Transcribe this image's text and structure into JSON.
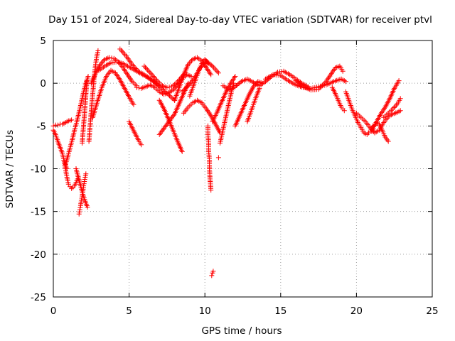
{
  "chart_data": {
    "type": "scatter",
    "title": "Day 151 of 2024, Sidereal Day-to-day VTEC variation (SDTVAR) for receiver ptvl",
    "xlabel": "GPS time / hours",
    "ylabel": "SDTVAR / TECUs",
    "xlim": [
      0,
      25
    ],
    "ylim": [
      -25,
      5
    ],
    "xticks": [
      0,
      5,
      10,
      15,
      20,
      25
    ],
    "yticks": [
      5,
      0,
      -5,
      -10,
      -15,
      -20,
      -25
    ],
    "xtick_labels": [
      "0",
      "5",
      "10",
      "15",
      "20",
      "25"
    ],
    "ytick_labels": [
      "5",
      "0",
      "-5",
      "-10",
      "-15",
      "-20",
      "-25"
    ],
    "grid": true,
    "marker": "+",
    "color": "#ff0000",
    "series": [
      {
        "name": "s01",
        "x": [
          0.0,
          0.15,
          0.3,
          0.45,
          0.6,
          0.8,
          1.0,
          1.2
        ],
        "y": [
          -5.0,
          -4.9,
          -4.9,
          -4.8,
          -4.8,
          -4.6,
          -4.4,
          -4.3
        ]
      },
      {
        "name": "s02",
        "x": [
          0.0,
          0.15,
          0.3,
          0.45,
          0.6,
          0.7,
          0.8,
          0.9
        ],
        "y": [
          -5.5,
          -6.0,
          -6.8,
          -7.5,
          -8.2,
          -9.0,
          -9.6,
          -10.0
        ]
      },
      {
        "name": "s03",
        "x": [
          0.7,
          0.8,
          0.9,
          1.0,
          1.1,
          1.2,
          1.3,
          1.4,
          1.5,
          1.6
        ],
        "y": [
          -9.0,
          -10.0,
          -11.0,
          -11.8,
          -12.1,
          -12.3,
          -12.2,
          -12.0,
          -11.6,
          -11.2
        ]
      },
      {
        "name": "s04",
        "x": [
          0.8,
          0.95,
          1.1,
          1.25,
          1.4,
          1.55,
          1.7,
          1.85,
          2.0,
          2.15,
          2.3
        ],
        "y": [
          -9.5,
          -8.6,
          -7.6,
          -6.6,
          -5.5,
          -4.5,
          -3.4,
          -2.2,
          -1.0,
          0.0,
          0.8
        ]
      },
      {
        "name": "s05",
        "x": [
          1.5,
          1.8,
          1.95,
          2.1,
          2.25
        ],
        "y": [
          -10.0,
          -12.0,
          -13.0,
          -13.8,
          -14.5
        ]
      },
      {
        "name": "s06",
        "x": [
          1.7,
          1.75,
          1.8,
          1.85,
          1.9,
          1.95,
          2.0,
          2.05,
          2.1,
          2.15
        ],
        "y": [
          -15.3,
          -14.8,
          -14.3,
          -13.7,
          -13.2,
          -12.6,
          -12.0,
          -11.5,
          -11.0,
          -10.6
        ]
      },
      {
        "name": "s07",
        "x": [
          1.9,
          1.97,
          2.04,
          2.1,
          2.16,
          2.22
        ],
        "y": [
          -7.0,
          -5.5,
          -4.0,
          -2.5,
          -1.0,
          0.3
        ]
      },
      {
        "name": "s08",
        "x": [
          2.35,
          2.45,
          2.55,
          2.65,
          2.75,
          2.85,
          2.95
        ],
        "y": [
          -6.8,
          -4.5,
          -2.2,
          -0.2,
          1.6,
          3.0,
          3.8
        ]
      },
      {
        "name": "s09",
        "x": [
          2.5,
          2.8,
          3.1,
          3.4,
          3.7,
          4.0,
          4.3,
          4.6,
          4.9,
          5.2,
          5.5
        ],
        "y": [
          0.0,
          1.2,
          2.2,
          2.8,
          3.0,
          2.9,
          2.5,
          1.8,
          1.0,
          0.2,
          -0.3
        ]
      },
      {
        "name": "s10",
        "x": [
          3.0,
          3.4,
          3.8,
          4.2,
          4.6,
          5.0,
          5.4,
          5.8,
          6.2,
          6.6,
          7.0
        ],
        "y": [
          1.5,
          2.0,
          2.4,
          2.5,
          2.3,
          1.9,
          1.5,
          1.1,
          0.7,
          0.2,
          -0.3
        ]
      },
      {
        "name": "s11",
        "x": [
          2.6,
          2.9,
          3.2,
          3.5,
          3.8,
          4.1,
          4.4,
          4.7,
          5.0,
          5.3
        ],
        "y": [
          -4.0,
          -2.2,
          -0.5,
          0.8,
          1.5,
          1.2,
          0.4,
          -0.6,
          -1.6,
          -2.5
        ]
      },
      {
        "name": "s12",
        "x": [
          4.4,
          4.8,
          5.2,
          5.6,
          6.0,
          6.5,
          7.0,
          7.5,
          8.0
        ],
        "y": [
          4.0,
          3.2,
          2.2,
          1.4,
          1.0,
          0.4,
          -0.4,
          -1.2,
          -2.0
        ]
      },
      {
        "name": "s13",
        "x": [
          5.0,
          5.2,
          5.4,
          5.6,
          5.8
        ],
        "y": [
          -4.5,
          -5.2,
          -5.9,
          -6.6,
          -7.2
        ]
      },
      {
        "name": "s14",
        "x": [
          5.5,
          5.8,
          6.1,
          6.4,
          6.7,
          7.0,
          7.3,
          7.6,
          7.9,
          8.2,
          8.5,
          8.8,
          9.1
        ],
        "y": [
          -0.5,
          -0.6,
          -0.4,
          -0.2,
          -0.5,
          -1.0,
          -1.3,
          -1.1,
          -0.8,
          -0.2,
          0.5,
          1.0,
          0.8
        ]
      },
      {
        "name": "s15",
        "x": [
          6.0,
          6.3,
          6.6,
          6.9,
          7.2,
          7.5,
          7.8,
          8.1,
          8.4,
          8.7
        ],
        "y": [
          2.0,
          1.4,
          0.8,
          0.2,
          -0.3,
          -0.5,
          -0.4,
          0.0,
          0.6,
          1.2
        ]
      },
      {
        "name": "s16",
        "x": [
          7.0,
          7.5,
          8.0,
          8.3,
          8.6,
          8.9
        ],
        "y": [
          -6.0,
          -4.8,
          -3.6,
          -2.4,
          -1.2,
          0.0
        ]
      },
      {
        "name": "s17",
        "x": [
          7.0,
          7.3,
          7.6,
          7.9,
          8.2,
          8.5
        ],
        "y": [
          -2.0,
          -3.0,
          -4.2,
          -5.5,
          -6.8,
          -8.0
        ]
      },
      {
        "name": "s18",
        "x": [
          8.0,
          8.3,
          8.6,
          8.9,
          9.2,
          9.5,
          9.8,
          10.1,
          10.4
        ],
        "y": [
          -2.0,
          -0.5,
          1.0,
          2.2,
          2.8,
          3.0,
          2.6,
          1.8,
          1.0
        ]
      },
      {
        "name": "s19",
        "x": [
          8.6,
          8.9,
          9.2,
          9.5,
          9.8,
          10.1,
          10.4,
          10.7,
          11.0
        ],
        "y": [
          -3.5,
          -2.8,
          -2.3,
          -2.0,
          -2.3,
          -3.0,
          -3.8,
          -4.8,
          -5.8
        ]
      },
      {
        "name": "s20",
        "x": [
          8.5,
          8.9,
          9.3,
          9.7,
          10.1,
          10.5,
          10.9
        ],
        "y": [
          -1.0,
          -0.3,
          0.6,
          1.8,
          2.6,
          2.0,
          1.2
        ]
      },
      {
        "name": "s21",
        "x": [
          9.0,
          9.2,
          9.4,
          9.6,
          9.8,
          10.0,
          10.2
        ],
        "y": [
          -1.5,
          -0.5,
          0.5,
          1.5,
          2.3,
          2.8,
          2.3
        ]
      },
      {
        "name": "s22",
        "x": [
          10.2,
          10.2,
          10.25,
          10.25,
          10.3,
          10.3,
          10.35,
          10.4
        ],
        "y": [
          -5.0,
          -6.0,
          -7.0,
          -8.0,
          -9.0,
          -10.0,
          -11.5,
          -12.5
        ]
      },
      {
        "name": "s23",
        "x": [
          10.45,
          10.5,
          10.55
        ],
        "y": [
          -22.5,
          -22.2,
          -22.0
        ]
      },
      {
        "name": "s24",
        "x": [
          10.5,
          10.8,
          11.1,
          11.4,
          11.7,
          12.0
        ],
        "y": [
          -4.5,
          -3.4,
          -2.2,
          -1.0,
          0.0,
          0.8
        ]
      },
      {
        "name": "s25",
        "x": [
          10.9
        ],
        "y": [
          -8.7
        ]
      },
      {
        "name": "s26",
        "x": [
          11.0,
          11.15,
          11.3,
          11.45,
          11.6,
          11.75,
          11.9
        ],
        "y": [
          -7.0,
          -5.8,
          -4.6,
          -3.4,
          -2.2,
          -1.0,
          0.0
        ]
      },
      {
        "name": "s27",
        "x": [
          11.2,
          11.6,
          12.0,
          12.4,
          12.8,
          13.2,
          13.6,
          14.0,
          14.4,
          14.8,
          15.2,
          15.6,
          16.0,
          16.4,
          16.8
        ],
        "y": [
          -0.3,
          -0.8,
          -0.4,
          0.2,
          0.5,
          0.1,
          -0.3,
          0.2,
          0.8,
          1.3,
          1.4,
          1.0,
          0.5,
          0.0,
          -0.4
        ]
      },
      {
        "name": "s28",
        "x": [
          12.0,
          12.3,
          12.6,
          12.9,
          13.2,
          13.5,
          13.8
        ],
        "y": [
          -5.0,
          -3.8,
          -2.6,
          -1.4,
          -0.4,
          0.2,
          0.0
        ]
      },
      {
        "name": "s29",
        "x": [
          12.8,
          13.0,
          13.2,
          13.4,
          13.6
        ],
        "y": [
          -4.5,
          -3.5,
          -2.5,
          -1.5,
          -0.6
        ]
      },
      {
        "name": "s30",
        "x": [
          14.0,
          14.5,
          15.0,
          15.5,
          16.0,
          16.5,
          17.0,
          17.5,
          18.0,
          18.5,
          19.0,
          19.3
        ],
        "y": [
          0.5,
          1.0,
          0.9,
          0.3,
          -0.2,
          -0.5,
          -0.6,
          -0.4,
          -0.2,
          0.2,
          0.5,
          0.2
        ]
      },
      {
        "name": "s31",
        "x": [
          16.0,
          16.5,
          17.0,
          17.5,
          18.0,
          18.3,
          18.6,
          18.9,
          19.1
        ],
        "y": [
          0.3,
          -0.4,
          -0.8,
          -0.7,
          0.2,
          1.0,
          1.8,
          2.0,
          1.4
        ]
      },
      {
        "name": "s32",
        "x": [
          18.4,
          18.6,
          18.8,
          19.0,
          19.2
        ],
        "y": [
          -0.5,
          -1.2,
          -2.0,
          -2.8,
          -3.2
        ]
      },
      {
        "name": "s33",
        "x": [
          19.3,
          19.5,
          19.7,
          19.9,
          20.1,
          20.3,
          20.5,
          20.7,
          20.9,
          21.1,
          21.3,
          21.5,
          21.7,
          21.9,
          22.1
        ],
        "y": [
          -1.0,
          -2.0,
          -3.0,
          -3.8,
          -4.6,
          -5.2,
          -5.8,
          -6.0,
          -5.6,
          -5.0,
          -4.6,
          -4.8,
          -5.5,
          -6.3,
          -6.8
        ]
      },
      {
        "name": "s34",
        "x": [
          20.0,
          20.3,
          20.6,
          20.9,
          21.2,
          21.5,
          21.8,
          22.1,
          22.4,
          22.7,
          22.9
        ],
        "y": [
          -3.5,
          -4.0,
          -4.5,
          -5.2,
          -5.8,
          -5.5,
          -4.6,
          -3.9,
          -3.6,
          -3.4,
          -3.2
        ]
      },
      {
        "name": "s35",
        "x": [
          21.0,
          21.3,
          21.6,
          21.9,
          22.2,
          22.5,
          22.8
        ],
        "y": [
          -5.6,
          -4.6,
          -3.6,
          -2.8,
          -1.8,
          -0.6,
          0.3
        ]
      },
      {
        "name": "s36",
        "x": [
          21.8,
          22.1,
          22.4,
          22.7,
          22.9
        ],
        "y": [
          -4.0,
          -3.5,
          -3.0,
          -2.4,
          -1.8
        ]
      }
    ]
  }
}
